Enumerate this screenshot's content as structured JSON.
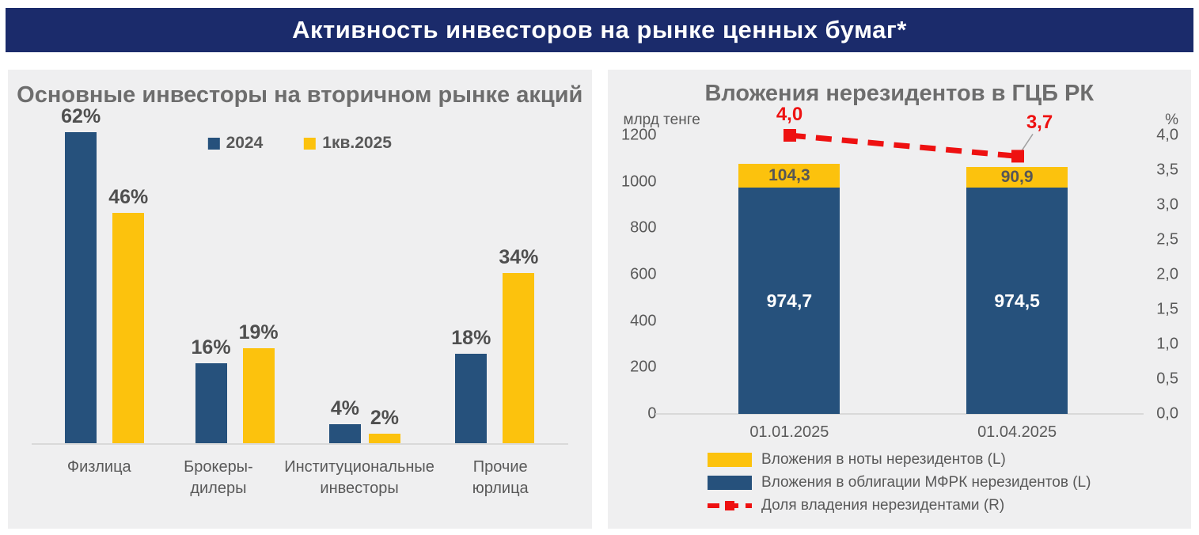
{
  "banner": {
    "title": "Активность инвесторов на рынке ценных бумаг*"
  },
  "colors": {
    "navy": "#1b2b6b",
    "blue": "#26517c",
    "yellow": "#fcc20d",
    "red": "#ee1111",
    "panel_bg": "#efeff0",
    "text_grey": "#595959",
    "title_grey": "#6d6d6d",
    "label_dark": "#4f4f4f",
    "baseline_grey": "#d9d9d9",
    "leader_grey": "#a0a0a0",
    "white": "#ffffff"
  },
  "chart_data": [
    {
      "type": "bar",
      "title": "Основные инвесторы на вторичном рынке акций",
      "categories": [
        "Физлица",
        "Брокеры-дилеры",
        "Институциональные инвесторы",
        "Прочие юрлица"
      ],
      "series": [
        {
          "name": "2024",
          "color_key": "blue",
          "values": [
            62,
            16,
            4,
            18
          ],
          "labels": [
            "62%",
            "16%",
            "4%",
            "18%"
          ]
        },
        {
          "name": "1кв.2025",
          "color_key": "yellow",
          "values": [
            46,
            19,
            2,
            34
          ],
          "labels": [
            "46%",
            "19%",
            "2%",
            "34%"
          ]
        }
      ],
      "unit": "%",
      "ylim": [
        0,
        64
      ],
      "grid": false,
      "legend_position": "top-center"
    },
    {
      "type": "stacked-bar-line",
      "title": "Вложения нерезидентов в ГЦБ РК",
      "categories": [
        "01.01.2025",
        "01.04.2025"
      ],
      "left_axis": {
        "unit": "млрд тенге",
        "max": 1200,
        "ticks": [
          "1200",
          "1000",
          "800",
          "600",
          "400",
          "200",
          "0"
        ]
      },
      "right_axis": {
        "unit": "%",
        "max": 4.0,
        "ticks": [
          "4,0",
          "3,5",
          "3,0",
          "2,5",
          "2,0",
          "1,5",
          "1,0",
          "0,5",
          "0,0"
        ]
      },
      "stack_series": [
        {
          "name": "Вложения в облигации МФРК нерезидентов (L)",
          "color_key": "blue",
          "values": [
            974.7,
            974.5
          ],
          "labels": [
            "974,7",
            "974,5"
          ]
        },
        {
          "name": "Вложения в ноты нерезидентов (L)",
          "color_key": "yellow",
          "values": [
            104.3,
            90.9
          ],
          "labels": [
            "104,3",
            "90,9"
          ]
        }
      ],
      "line_series": {
        "name": "Доля владения нерезидентами (R)",
        "color_key": "red",
        "values": [
          4.0,
          3.7
        ],
        "labels": [
          "4,0",
          "3,7"
        ]
      },
      "legend": [
        "Вложения в ноты нерезидентов (L)",
        "Вложения в облигации МФРК нерезидентов (L)",
        "Доля владения нерезидентами (R)"
      ],
      "grid": false,
      "legend_position": "bottom-center"
    }
  ]
}
